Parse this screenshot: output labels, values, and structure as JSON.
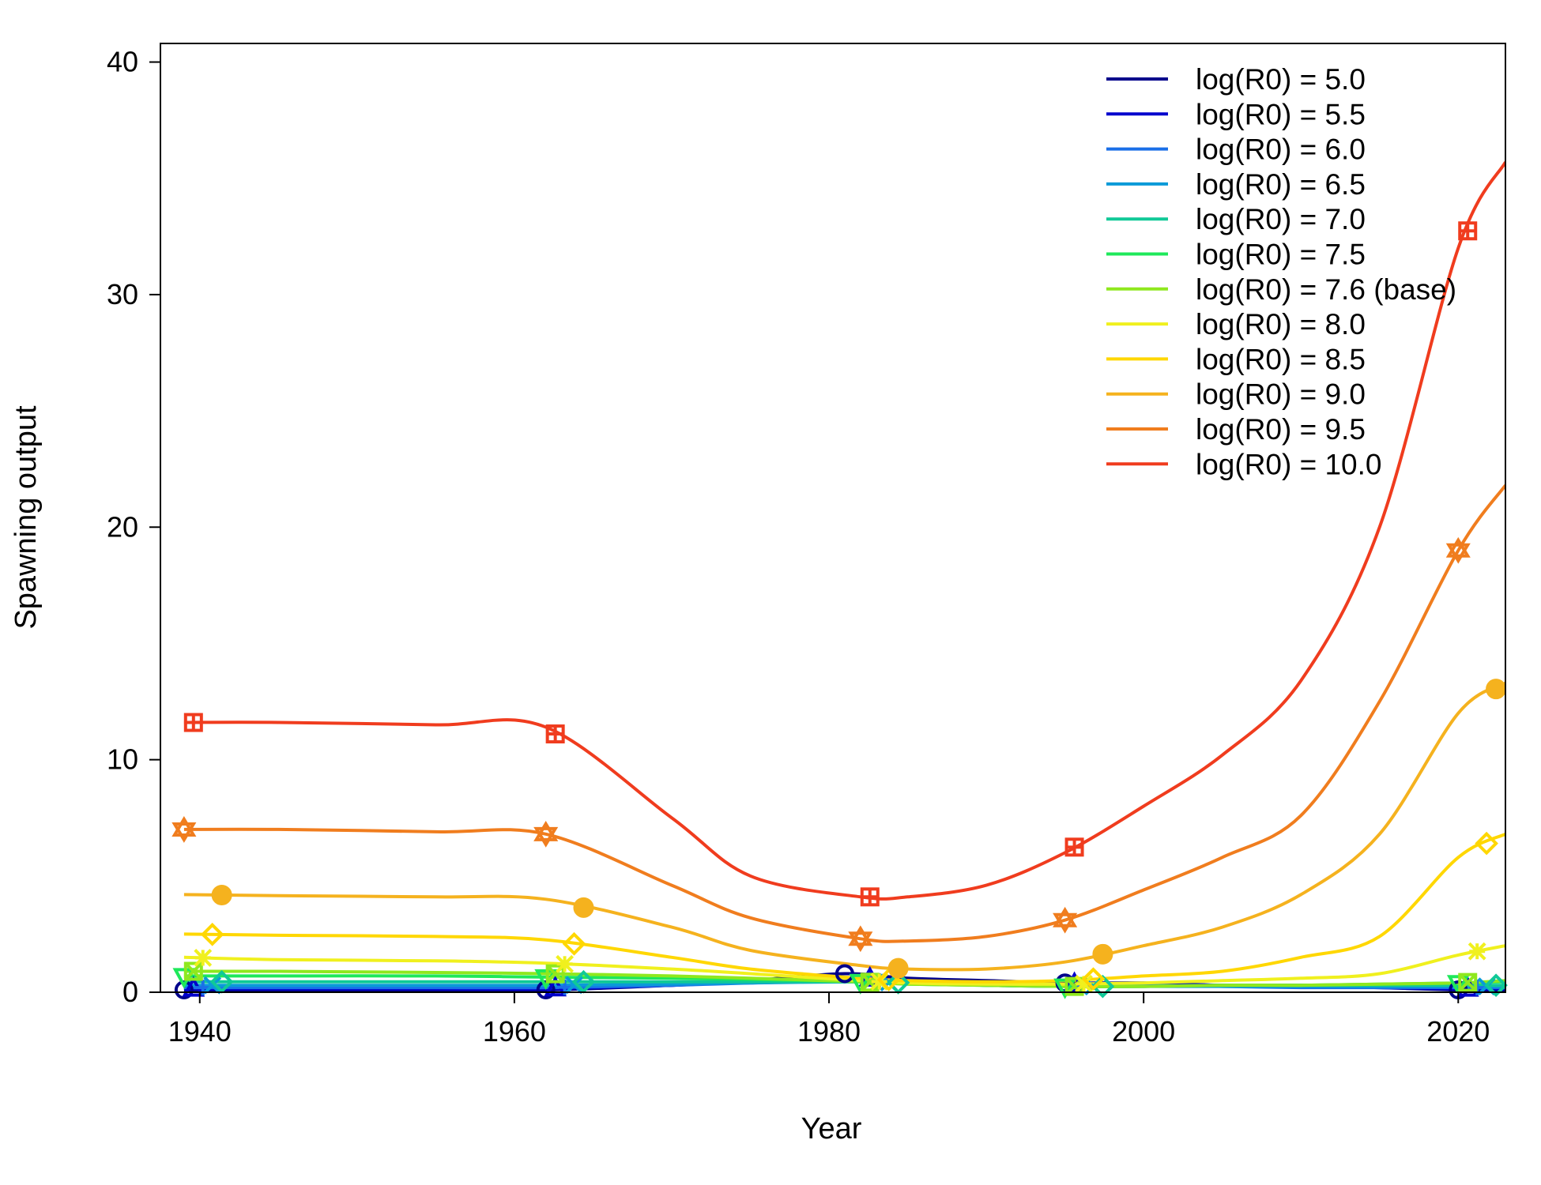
{
  "chart_data": {
    "type": "line",
    "title": "",
    "xlabel": "Year",
    "ylabel": "Spawning output",
    "xlim": [
      1937.5,
      2023
    ],
    "ylim": [
      0,
      40.8
    ],
    "xticks": [
      "1940",
      "1960",
      "1980",
      "2000",
      "2020"
    ],
    "yticks": [
      "0",
      "10",
      "20",
      "30",
      "40"
    ],
    "grid": false,
    "legend_position": "top-right",
    "series": [
      {
        "name": "log(R0) = 5.0",
        "color": "#00008b",
        "marker": "circle",
        "x": [
          1939,
          1945,
          1955,
          1962,
          1970,
          1975,
          1981,
          1985,
          1990,
          1995,
          2000,
          2005,
          2010,
          2015,
          2020,
          2023
        ],
        "y": [
          0.1,
          0.1,
          0.1,
          0.1,
          0.3,
          0.5,
          0.8,
          0.6,
          0.5,
          0.4,
          0.4,
          0.3,
          0.3,
          0.2,
          0.1,
          0.1
        ]
      },
      {
        "name": "log(R0) = 5.5",
        "color": "#0000cd",
        "marker": "triangle",
        "x": [
          1939,
          1945,
          1955,
          1962,
          1970,
          1975,
          1982,
          1985,
          1990,
          1995,
          2000,
          2005,
          2010,
          2015,
          2020,
          2023
        ],
        "y": [
          0.15,
          0.15,
          0.15,
          0.15,
          0.3,
          0.45,
          0.6,
          0.5,
          0.4,
          0.35,
          0.35,
          0.3,
          0.25,
          0.2,
          0.15,
          0.15
        ]
      },
      {
        "name": "log(R0) = 6.0",
        "color": "#1a6fe8",
        "marker": "plus",
        "x": [
          1939,
          1945,
          1955,
          1962,
          1970,
          1975,
          1982,
          1985,
          1990,
          1995,
          2000,
          2005,
          2010,
          2015,
          2020,
          2023
        ],
        "y": [
          0.2,
          0.2,
          0.2,
          0.2,
          0.3,
          0.4,
          0.5,
          0.45,
          0.35,
          0.3,
          0.3,
          0.25,
          0.2,
          0.2,
          0.2,
          0.2
        ]
      },
      {
        "name": "log(R0) = 6.5",
        "color": "#0a9ad8",
        "marker": "cross",
        "x": [
          1939,
          1945,
          1955,
          1962,
          1970,
          1975,
          1982,
          1985,
          1990,
          1995,
          2000,
          2005,
          2010,
          2015,
          2020,
          2023
        ],
        "y": [
          0.3,
          0.3,
          0.3,
          0.3,
          0.35,
          0.4,
          0.45,
          0.4,
          0.3,
          0.25,
          0.25,
          0.25,
          0.25,
          0.25,
          0.25,
          0.25
        ]
      },
      {
        "name": "log(R0) = 7.0",
        "color": "#10c997",
        "marker": "diamond",
        "x": [
          1939,
          1945,
          1955,
          1962,
          1970,
          1975,
          1982,
          1985,
          1990,
          1995,
          2000,
          2005,
          2010,
          2015,
          2020,
          2023
        ],
        "y": [
          0.45,
          0.45,
          0.45,
          0.45,
          0.45,
          0.45,
          0.45,
          0.4,
          0.3,
          0.25,
          0.25,
          0.3,
          0.3,
          0.3,
          0.3,
          0.3
        ]
      },
      {
        "name": "log(R0) = 7.5",
        "color": "#1ee85a",
        "marker": "triangle-down",
        "x": [
          1939,
          1945,
          1955,
          1962,
          1970,
          1975,
          1982,
          1985,
          1990,
          1995,
          2000,
          2005,
          2010,
          2015,
          2020,
          2023
        ],
        "y": [
          0.7,
          0.7,
          0.7,
          0.65,
          0.6,
          0.55,
          0.45,
          0.35,
          0.3,
          0.25,
          0.25,
          0.3,
          0.3,
          0.35,
          0.4,
          0.45
        ]
      },
      {
        "name": "log(R0) = 7.6 (base)",
        "color": "#8fe81e",
        "marker": "square-cross",
        "x": [
          1939,
          1945,
          1955,
          1962,
          1970,
          1975,
          1982,
          1985,
          1990,
          1995,
          2000,
          2005,
          2010,
          2015,
          2020,
          2023
        ],
        "y": [
          0.9,
          0.9,
          0.85,
          0.8,
          0.7,
          0.6,
          0.45,
          0.35,
          0.3,
          0.25,
          0.25,
          0.3,
          0.3,
          0.35,
          0.4,
          0.5
        ]
      },
      {
        "name": "log(R0) = 8.0",
        "color": "#f0f01e",
        "marker": "asterisk",
        "x": [
          1939,
          1945,
          1955,
          1962,
          1970,
          1975,
          1982,
          1985,
          1990,
          1995,
          2000,
          2005,
          2010,
          2015,
          2020,
          2023
        ],
        "y": [
          1.5,
          1.4,
          1.35,
          1.25,
          1.0,
          0.8,
          0.5,
          0.4,
          0.35,
          0.35,
          0.4,
          0.5,
          0.6,
          0.8,
          1.6,
          2.0
        ]
      },
      {
        "name": "log(R0) = 8.5",
        "color": "#ffd700",
        "marker": "diamond",
        "x": [
          1939,
          1945,
          1955,
          1962,
          1970,
          1975,
          1982,
          1985,
          1990,
          1995,
          2000,
          2005,
          2010,
          2015,
          2020,
          2023
        ],
        "y": [
          2.5,
          2.45,
          2.4,
          2.25,
          1.5,
          1.0,
          0.6,
          0.5,
          0.45,
          0.5,
          0.7,
          0.9,
          1.5,
          2.4,
          5.8,
          6.8
        ]
      },
      {
        "name": "log(R0) = 9.0",
        "color": "#f5b21e",
        "marker": "circle-filled",
        "x": [
          1939,
          1945,
          1955,
          1962,
          1970,
          1975,
          1982,
          1985,
          1990,
          1995,
          2000,
          2005,
          2010,
          2015,
          2020,
          2023
        ],
        "y": [
          4.2,
          4.15,
          4.1,
          4.0,
          2.8,
          1.8,
          1.15,
          1.0,
          1.0,
          1.3,
          2.0,
          2.8,
          4.2,
          6.8,
          12.0,
          13.3
        ]
      },
      {
        "name": "log(R0) = 9.5",
        "color": "#f07d1e",
        "marker": "star-of-david",
        "x": [
          1939,
          1945,
          1955,
          1962,
          1970,
          1975,
          1982,
          1985,
          1990,
          1995,
          2000,
          2005,
          2010,
          2015,
          2020,
          2023
        ],
        "y": [
          7.0,
          7.0,
          6.9,
          6.8,
          4.6,
          3.2,
          2.3,
          2.2,
          2.4,
          3.1,
          4.4,
          5.8,
          7.6,
          12.5,
          19.0,
          21.8
        ]
      },
      {
        "name": "log(R0) = 10.0",
        "color": "#f03c1e",
        "marker": "square-plus",
        "x": [
          1939,
          1945,
          1955,
          1962,
          1970,
          1975,
          1982,
          1985,
          1990,
          1995,
          2000,
          2005,
          2010,
          2015,
          2020,
          2023
        ],
        "y": [
          11.6,
          11.6,
          11.5,
          11.4,
          7.5,
          5.0,
          4.1,
          4.1,
          4.6,
          6.0,
          8.0,
          10.2,
          13.4,
          20.0,
          32.0,
          35.7
        ]
      }
    ]
  }
}
